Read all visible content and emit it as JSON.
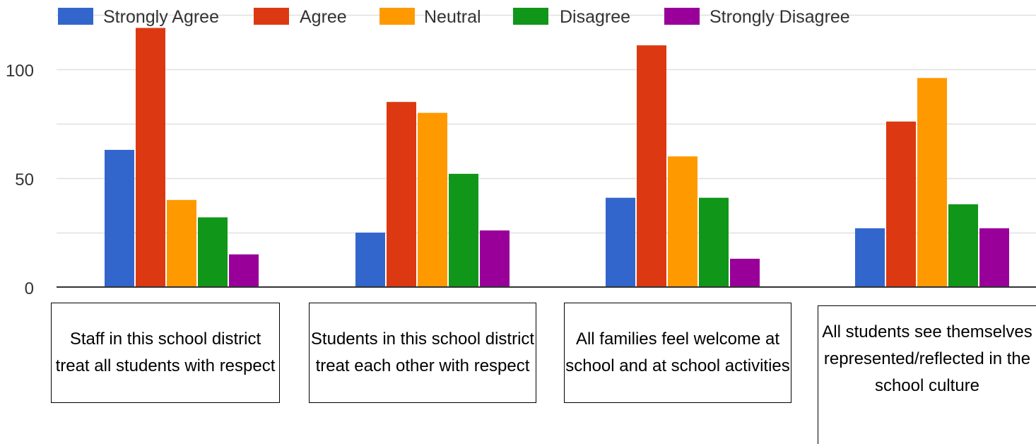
{
  "chart_data": {
    "type": "bar",
    "categories": [
      "Staff in this school district treat all students with respect",
      "Students in this school district treat each other with respect",
      "All families feel welcome at school and at school activities",
      "All students see themselves represented/reflected in the school culture"
    ],
    "series": [
      {
        "name": "Strongly Agree",
        "color": "#3366cc",
        "values": [
          63,
          25,
          41,
          27
        ]
      },
      {
        "name": "Agree",
        "color": "#dc3912",
        "values": [
          119,
          85,
          111,
          76
        ]
      },
      {
        "name": "Neutral",
        "color": "#ff9900",
        "values": [
          40,
          80,
          60,
          96
        ]
      },
      {
        "name": "Disagree",
        "color": "#109618",
        "values": [
          32,
          52,
          41,
          38
        ]
      },
      {
        "name": "Strongly Disagree",
        "color": "#990099",
        "values": [
          15,
          26,
          13,
          27
        ]
      }
    ],
    "yticks": [
      "0",
      "50",
      "100"
    ],
    "ylim": [
      0,
      125
    ],
    "legend_position": "top",
    "grid": true
  }
}
